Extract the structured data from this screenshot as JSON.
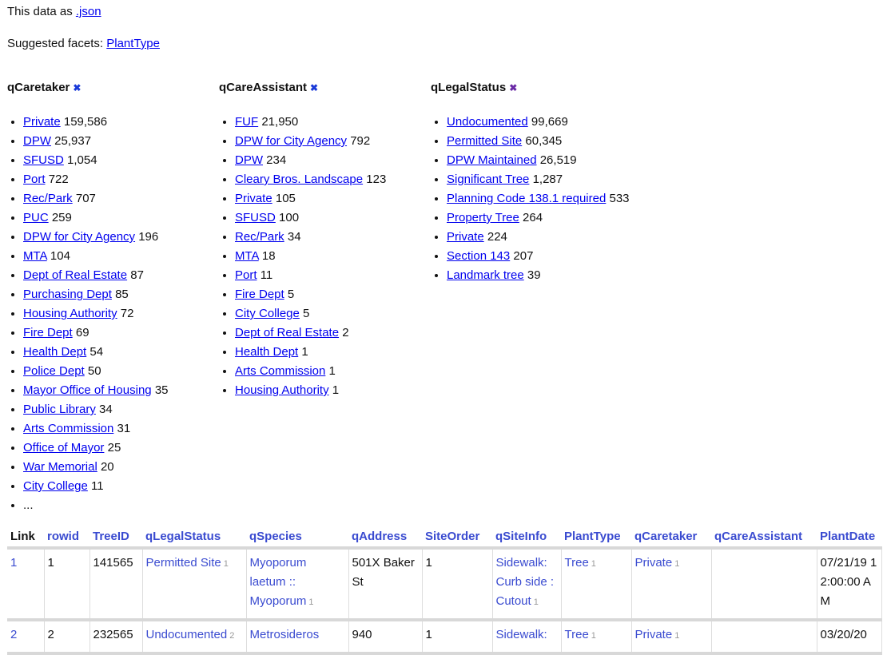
{
  "export": {
    "prefix": "This data as ",
    "link": ".json"
  },
  "suggested": {
    "prefix": "Suggested facets: ",
    "link": "PlantType"
  },
  "facets": [
    {
      "name": "qCaretaker",
      "items": [
        {
          "label": "Private",
          "count": "159,586"
        },
        {
          "label": "DPW",
          "count": "25,937"
        },
        {
          "label": "SFUSD",
          "count": "1,054"
        },
        {
          "label": "Port",
          "count": "722"
        },
        {
          "label": "Rec/Park",
          "count": "707"
        },
        {
          "label": "PUC",
          "count": "259"
        },
        {
          "label": "DPW for City Agency",
          "count": "196"
        },
        {
          "label": "MTA",
          "count": "104"
        },
        {
          "label": "Dept of Real Estate",
          "count": "87"
        },
        {
          "label": "Purchasing Dept",
          "count": "85"
        },
        {
          "label": "Housing Authority",
          "count": "72"
        },
        {
          "label": "Fire Dept",
          "count": "69"
        },
        {
          "label": "Health Dept",
          "count": "54"
        },
        {
          "label": "Police Dept",
          "count": "50"
        },
        {
          "label": "Mayor Office of Housing",
          "count": "35"
        },
        {
          "label": "Public Library",
          "count": "34"
        },
        {
          "label": "Arts Commission",
          "count": "31"
        },
        {
          "label": "Office of Mayor",
          "count": "25"
        },
        {
          "label": "War Memorial",
          "count": "20"
        },
        {
          "label": "City College",
          "count": "11"
        }
      ],
      "more": "..."
    },
    {
      "name": "qCareAssistant",
      "items": [
        {
          "label": "FUF",
          "count": "21,950"
        },
        {
          "label": "DPW for City Agency",
          "count": "792"
        },
        {
          "label": "DPW",
          "count": "234"
        },
        {
          "label": "Cleary Bros. Landscape",
          "count": "123"
        },
        {
          "label": "Private",
          "count": "105"
        },
        {
          "label": "SFUSD",
          "count": "100"
        },
        {
          "label": "Rec/Park",
          "count": "34"
        },
        {
          "label": "MTA",
          "count": "18"
        },
        {
          "label": "Port",
          "count": "11"
        },
        {
          "label": "Fire Dept",
          "count": "5"
        },
        {
          "label": "City College",
          "count": "5"
        },
        {
          "label": "Dept of Real Estate",
          "count": "2"
        },
        {
          "label": "Health Dept",
          "count": "1"
        },
        {
          "label": "Arts Commission",
          "count": "1"
        },
        {
          "label": "Housing Authority",
          "count": "1"
        }
      ]
    },
    {
      "name": "qLegalStatus",
      "items": [
        {
          "label": "Undocumented",
          "count": "99,669"
        },
        {
          "label": "Permitted Site",
          "count": "60,345"
        },
        {
          "label": "DPW Maintained",
          "count": "26,519"
        },
        {
          "label": "Significant Tree",
          "count": "1,287"
        },
        {
          "label": "Planning Code 138.1 required",
          "count": "533"
        },
        {
          "label": "Property Tree",
          "count": "264"
        },
        {
          "label": "Private",
          "count": "224"
        },
        {
          "label": "Section 143",
          "count": "207"
        },
        {
          "label": "Landmark tree",
          "count": "39"
        }
      ]
    }
  ],
  "table": {
    "columns": [
      "Link",
      "rowid",
      "TreeID",
      "qLegalStatus",
      "qSpecies",
      "qAddress",
      "SiteOrder",
      "qSiteInfo",
      "PlantType",
      "qCaretaker",
      "qCareAssistant",
      "PlantDate"
    ],
    "rows": [
      {
        "link": "1",
        "rowid": "1",
        "treeid": "141565",
        "legal": "Permitted Site",
        "legal_n": "1",
        "species": "Myoporum laetum :: Myoporum",
        "species_n": "1",
        "address": "501X Baker St",
        "siteorder": "1",
        "siteinfo": "Sidewalk: Curb side : Cutout",
        "siteinfo_n": "1",
        "planttype": "Tree",
        "planttype_n": "1",
        "caretaker": "Private",
        "caretaker_n": "1",
        "assistant": "",
        "date": "07/21/19 12:00:00 AM"
      },
      {
        "link": "2",
        "rowid": "2",
        "treeid": "232565",
        "legal": "Undocumented",
        "legal_n": "2",
        "species": "Metrosideros",
        "species_n": "",
        "address": "940",
        "siteorder": "1",
        "siteinfo": "Sidewalk:",
        "siteinfo_n": "",
        "planttype": "Tree",
        "planttype_n": "1",
        "caretaker": "Private",
        "caretaker_n": "1",
        "assistant": "",
        "date": "03/20/20"
      }
    ]
  },
  "colors": {
    "link": "#0000ee",
    "table_link": "#3a4bd0",
    "remove_icon": "#1a3ad8",
    "remove_icon_alt": "#6a2aa6"
  }
}
